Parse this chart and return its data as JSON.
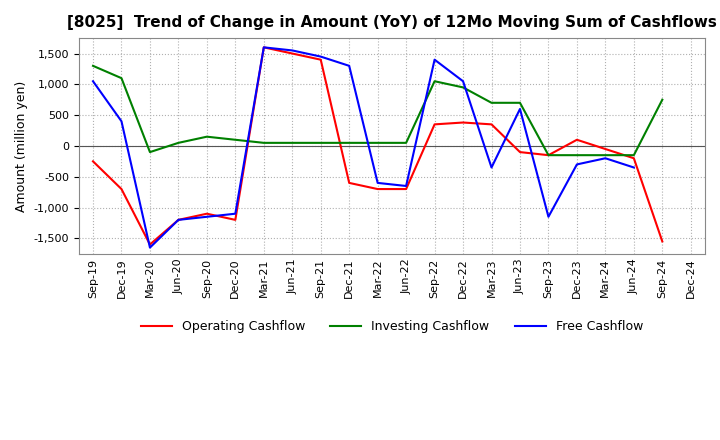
{
  "title": "[8025]  Trend of Change in Amount (YoY) of 12Mo Moving Sum of Cashflows",
  "ylabel": "Amount (million yen)",
  "ylim": [
    -1750,
    1750
  ],
  "yticks": [
    -1500,
    -1000,
    -500,
    0,
    500,
    1000,
    1500
  ],
  "x_labels": [
    "Sep-19",
    "Dec-19",
    "Mar-20",
    "Jun-20",
    "Sep-20",
    "Dec-20",
    "Mar-21",
    "Jun-21",
    "Sep-21",
    "Dec-21",
    "Mar-22",
    "Jun-22",
    "Sep-22",
    "Dec-22",
    "Mar-23",
    "Jun-23",
    "Sep-23",
    "Dec-23",
    "Mar-24",
    "Jun-24",
    "Sep-24",
    "Dec-24"
  ],
  "operating": [
    -250,
    -700,
    -1600,
    -1200,
    -1100,
    -1200,
    1600,
    1500,
    1400,
    -600,
    -700,
    -700,
    350,
    380,
    350,
    -100,
    -150,
    100,
    -50,
    -200,
    -1550,
    null
  ],
  "investing": [
    1300,
    1100,
    -100,
    50,
    150,
    100,
    50,
    50,
    50,
    50,
    50,
    50,
    1050,
    950,
    700,
    700,
    -150,
    -150,
    -150,
    -150,
    750,
    null
  ],
  "free": [
    1050,
    400,
    -1650,
    -1200,
    -1150,
    -1100,
    1600,
    1550,
    1450,
    1300,
    -600,
    -650,
    1400,
    1050,
    -350,
    600,
    -1150,
    -300,
    -200,
    -350,
    null,
    null
  ],
  "op_color": "#ff0000",
  "inv_color": "#008000",
  "free_color": "#0000ff",
  "bg_color": "#ffffff",
  "grid_color": "#b0b0b0",
  "title_fontsize": 11,
  "label_fontsize": 9,
  "tick_fontsize": 8,
  "legend_fontsize": 9
}
